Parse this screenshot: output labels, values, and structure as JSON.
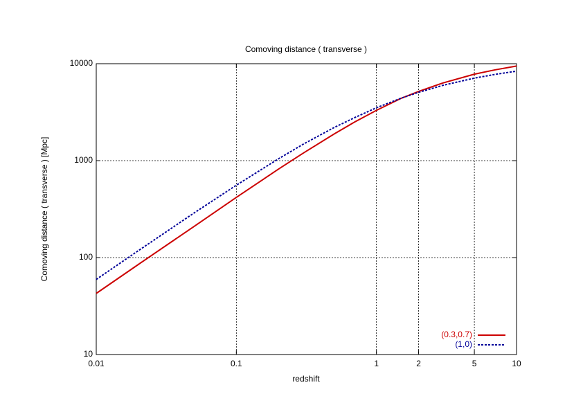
{
  "chart_data": {
    "type": "line",
    "title": "Comoving distance ( transverse )",
    "x_label": "redshift",
    "y_label": "Comoving distance ( transverse ) [Mpc]",
    "x": [
      0.01,
      0.02,
      0.05,
      0.1,
      0.2,
      0.3,
      0.5,
      0.7,
      1,
      1.5,
      2,
      3,
      5,
      7,
      10
    ],
    "series": [
      {
        "name": "(0.3,0.7)",
        "color": "#cc0000",
        "style": "solid",
        "values": [
          42.7,
          85,
          210,
          418,
          818,
          1195,
          1888,
          2508,
          3303,
          4394,
          5179,
          6345,
          7795,
          8636,
          9455
        ]
      },
      {
        "name": "(1,0)",
        "color": "#000099",
        "style": "dotted",
        "values": [
          59.5,
          118,
          289,
          558,
          1045,
          1478,
          2200,
          2780,
          3512,
          4408,
          5068,
          5996,
          7097,
          7752,
          8376
        ]
      }
    ],
    "xlim": [
      0.01,
      10
    ],
    "ylim": [
      10,
      10000
    ],
    "xticks": [
      0.01,
      0.1,
      1,
      2,
      5,
      10
    ],
    "yticks": [
      10,
      100,
      1000,
      10000
    ],
    "xscale": "log",
    "yscale": "log",
    "grid": true,
    "legend": "lower right"
  }
}
